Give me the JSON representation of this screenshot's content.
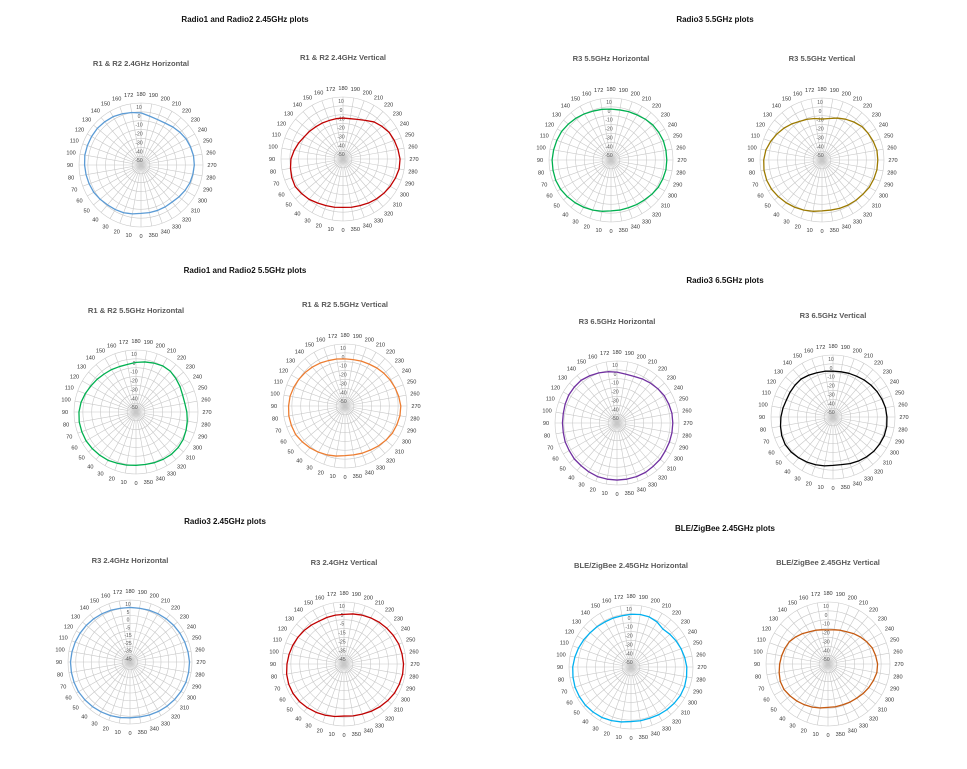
{
  "groups": [
    {
      "title": "Radio1 and Radio2 2.45GHz plots"
    },
    {
      "title": "Radio3 5.5GHz plots"
    },
    {
      "title": "Radio1 and Radio2 5.5GHz plots"
    },
    {
      "title": "Radio3 6.5GHz plots"
    },
    {
      "title": "Radio3 2.45GHz plots"
    },
    {
      "title": "BLE/ZigBee 2.45GHz plots"
    }
  ],
  "chart_data": [
    {
      "type": "polar",
      "title": "R1 & R2 2.4GHz Horizontal",
      "color": "#5b9bd5",
      "rticks": [
        "10",
        "0",
        "-10",
        "-20",
        "-30",
        "-40",
        "-50"
      ],
      "radius": [
        0.78,
        0.8,
        0.82,
        0.83,
        0.84,
        0.86,
        0.88,
        0.89,
        0.9,
        0.91,
        0.92,
        0.92,
        0.92,
        0.92,
        0.91,
        0.9,
        0.88,
        0.86,
        0.84,
        0.8,
        0.78,
        0.78,
        0.8,
        0.82,
        0.84,
        0.85,
        0.86,
        0.86,
        0.85,
        0.84,
        0.82,
        0.8,
        0.78,
        0.78,
        0.78,
        0.78
      ]
    },
    {
      "type": "polar",
      "title": "R1 & R2 2.4GHz Vertical",
      "color": "#c00000",
      "rticks": [
        "10",
        "0",
        "-10",
        "-20",
        "-30",
        "-40",
        "-50"
      ],
      "radius": [
        0.78,
        0.79,
        0.8,
        0.82,
        0.85,
        0.87,
        0.89,
        0.88,
        0.86,
        0.84,
        0.8,
        0.76,
        0.72,
        0.7,
        0.68,
        0.67,
        0.66,
        0.66,
        0.66,
        0.66,
        0.68,
        0.72,
        0.78,
        0.82,
        0.86,
        0.88,
        0.9,
        0.92,
        0.92,
        0.9,
        0.88,
        0.86,
        0.84,
        0.82,
        0.8,
        0.79
      ]
    },
    {
      "type": "polar",
      "title": "R3 5.5GHz Horizontal",
      "color": "#00b050",
      "rticks": [
        "10",
        "0",
        "-10",
        "-20",
        "-30",
        "-40",
        "-50"
      ],
      "radius": [
        0.82,
        0.84,
        0.86,
        0.88,
        0.9,
        0.92,
        0.94,
        0.95,
        0.95,
        0.95,
        0.94,
        0.93,
        0.92,
        0.9,
        0.88,
        0.86,
        0.84,
        0.83,
        0.82,
        0.82,
        0.83,
        0.84,
        0.86,
        0.88,
        0.89,
        0.9,
        0.9,
        0.9,
        0.9,
        0.89,
        0.88,
        0.86,
        0.84,
        0.83,
        0.82,
        0.82
      ]
    },
    {
      "type": "polar",
      "title": "R3 5.5GHz Vertical",
      "color": "#9c7a00",
      "rticks": [
        "10",
        "0",
        "-10",
        "-20",
        "-30",
        "-40",
        "-50"
      ],
      "radius": [
        0.82,
        0.84,
        0.86,
        0.88,
        0.9,
        0.92,
        0.94,
        0.95,
        0.95,
        0.94,
        0.92,
        0.88,
        0.84,
        0.8,
        0.76,
        0.72,
        0.7,
        0.68,
        0.66,
        0.68,
        0.72,
        0.76,
        0.8,
        0.84,
        0.86,
        0.88,
        0.9,
        0.9,
        0.9,
        0.89,
        0.88,
        0.86,
        0.85,
        0.84,
        0.83,
        0.82
      ]
    },
    {
      "type": "polar",
      "title": "R1 & R2 5.5GHz Horizontal",
      "color": "#00b050",
      "rticks": [
        "10",
        "0",
        "-10",
        "-20",
        "-30",
        "-40",
        "-50"
      ],
      "radius": [
        0.86,
        0.87,
        0.88,
        0.9,
        0.91,
        0.92,
        0.93,
        0.93,
        0.93,
        0.92,
        0.9,
        0.87,
        0.84,
        0.82,
        0.8,
        0.79,
        0.78,
        0.78,
        0.8,
        0.82,
        0.84,
        0.86,
        0.86,
        0.84,
        0.82,
        0.8,
        0.8,
        0.82,
        0.84,
        0.86,
        0.88,
        0.89,
        0.89,
        0.88,
        0.87,
        0.86
      ]
    },
    {
      "type": "polar",
      "title": "R1 & R2 5.5GHz Vertical",
      "color": "#ed7d31",
      "rticks": [
        "10",
        "0",
        "-10",
        "-20",
        "-30",
        "-40",
        "-50"
      ],
      "radius": [
        0.8,
        0.82,
        0.84,
        0.86,
        0.88,
        0.9,
        0.92,
        0.92,
        0.92,
        0.91,
        0.9,
        0.88,
        0.86,
        0.84,
        0.82,
        0.8,
        0.78,
        0.77,
        0.76,
        0.76,
        0.77,
        0.78,
        0.8,
        0.82,
        0.84,
        0.86,
        0.88,
        0.9,
        0.9,
        0.89,
        0.88,
        0.86,
        0.84,
        0.82,
        0.81,
        0.8
      ]
    },
    {
      "type": "polar",
      "title": "R3 6.5GHz Horizontal",
      "color": "#7030a0",
      "rticks": [
        "10",
        "0",
        "-10",
        "-20",
        "-30",
        "-40",
        "-50"
      ],
      "radius": [
        0.92,
        0.92,
        0.92,
        0.91,
        0.9,
        0.9,
        0.89,
        0.89,
        0.88,
        0.88,
        0.88,
        0.89,
        0.9,
        0.9,
        0.9,
        0.88,
        0.86,
        0.84,
        0.82,
        0.8,
        0.8,
        0.82,
        0.84,
        0.86,
        0.88,
        0.89,
        0.9,
        0.9,
        0.9,
        0.9,
        0.9,
        0.91,
        0.91,
        0.92,
        0.92,
        0.92
      ]
    },
    {
      "type": "polar",
      "title": "R3 6.5GHz Vertical",
      "color": "#000000",
      "rticks": [
        "10",
        "0",
        "-10",
        "-20",
        "-30",
        "-40",
        "-50"
      ],
      "radius": [
        0.78,
        0.8,
        0.82,
        0.84,
        0.86,
        0.88,
        0.89,
        0.88,
        0.86,
        0.84,
        0.82,
        0.8,
        0.8,
        0.8,
        0.8,
        0.78,
        0.76,
        0.75,
        0.74,
        0.74,
        0.75,
        0.76,
        0.78,
        0.8,
        0.82,
        0.84,
        0.86,
        0.87,
        0.88,
        0.88,
        0.87,
        0.86,
        0.84,
        0.82,
        0.8,
        0.78
      ]
    },
    {
      "type": "polar",
      "title": "R3 2.4GHz Horizontal",
      "color": "#5b9bd5",
      "rticks": [
        "10",
        "5",
        "0",
        "-5",
        "-15",
        "-25",
        "-35",
        "-45"
      ],
      "radius": [
        0.9,
        0.91,
        0.92,
        0.93,
        0.94,
        0.95,
        0.96,
        0.96,
        0.96,
        0.96,
        0.95,
        0.94,
        0.93,
        0.92,
        0.91,
        0.9,
        0.89,
        0.88,
        0.88,
        0.88,
        0.89,
        0.9,
        0.91,
        0.92,
        0.93,
        0.94,
        0.95,
        0.96,
        0.96,
        0.96,
        0.95,
        0.94,
        0.93,
        0.92,
        0.91,
        0.9
      ]
    },
    {
      "type": "polar",
      "title": "R3 2.4GHz Vertical",
      "color": "#c00000",
      "rticks": [
        "10",
        "5",
        "-5",
        "-15",
        "-25",
        "-35",
        "-45"
      ],
      "radius": [
        0.84,
        0.86,
        0.88,
        0.9,
        0.92,
        0.94,
        0.95,
        0.95,
        0.94,
        0.92,
        0.9,
        0.88,
        0.86,
        0.84,
        0.82,
        0.8,
        0.8,
        0.8,
        0.8,
        0.82,
        0.84,
        0.86,
        0.88,
        0.9,
        0.92,
        0.94,
        0.95,
        0.96,
        0.96,
        0.95,
        0.94,
        0.92,
        0.9,
        0.88,
        0.86,
        0.85
      ]
    },
    {
      "type": "polar",
      "title": "BLE/ZigBee 2.45GHz Horizontal",
      "color": "#00b0f0",
      "rticks": [
        "10",
        "0",
        "-10",
        "-20",
        "-30",
        "-40",
        "-50"
      ],
      "radius": [
        0.88,
        0.9,
        0.92,
        0.94,
        0.95,
        0.96,
        0.96,
        0.96,
        0.95,
        0.94,
        0.92,
        0.9,
        0.88,
        0.86,
        0.85,
        0.84,
        0.84,
        0.84,
        0.85,
        0.86,
        0.86,
        0.84,
        0.8,
        0.82,
        0.84,
        0.86,
        0.88,
        0.9,
        0.91,
        0.92,
        0.92,
        0.91,
        0.9,
        0.89,
        0.88,
        0.88
      ]
    },
    {
      "type": "polar",
      "title": "BLE/ZigBee 2.45GHz Vertical",
      "color": "#c55a11",
      "rticks": [
        "10",
        "0",
        "-10",
        "-20",
        "-30",
        "-40",
        "-50"
      ],
      "radius": [
        0.7,
        0.72,
        0.74,
        0.76,
        0.78,
        0.8,
        0.82,
        0.82,
        0.8,
        0.78,
        0.76,
        0.74,
        0.72,
        0.68,
        0.64,
        0.6,
        0.58,
        0.56,
        0.55,
        0.56,
        0.58,
        0.6,
        0.64,
        0.68,
        0.72,
        0.76,
        0.78,
        0.8,
        0.8,
        0.78,
        0.76,
        0.74,
        0.72,
        0.71,
        0.7,
        0.7
      ]
    }
  ]
}
